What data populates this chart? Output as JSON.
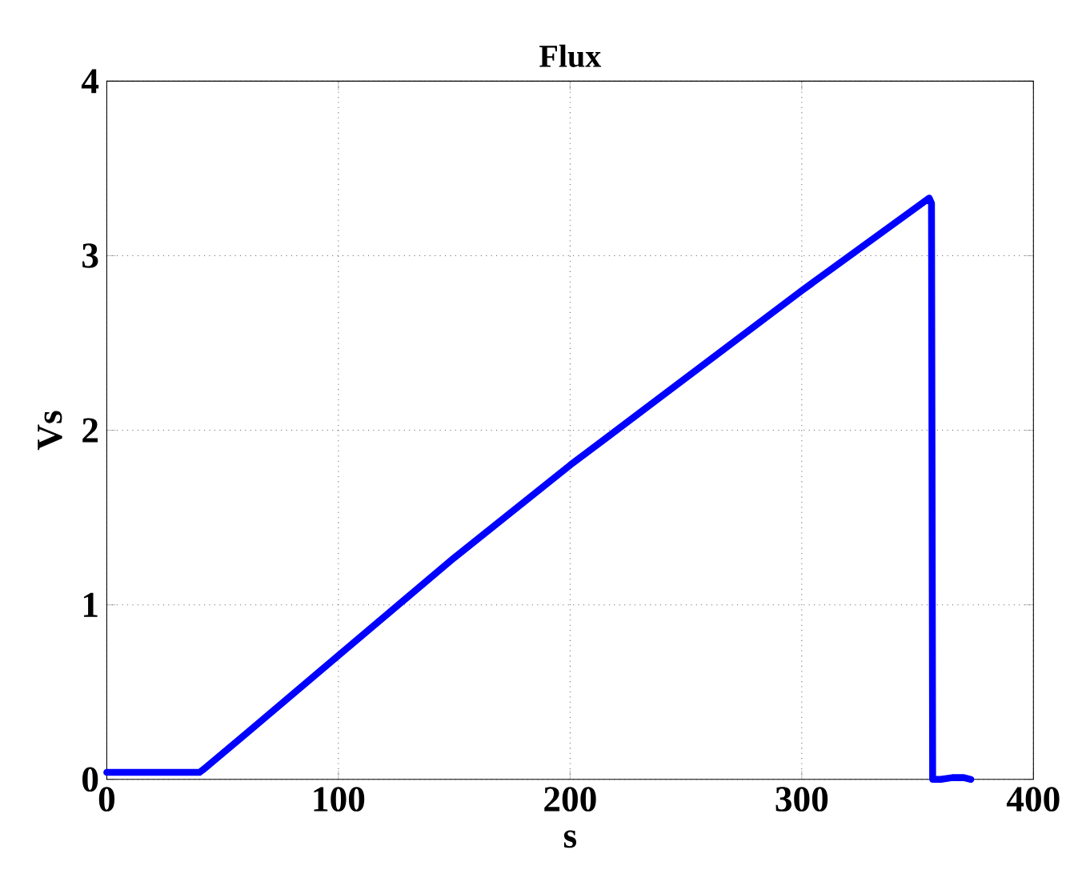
{
  "chart_data": {
    "type": "line",
    "title": "Flux",
    "xlabel": "s",
    "ylabel": "Vs",
    "x": [
      0,
      40,
      42,
      60,
      100,
      150,
      200,
      250,
      300,
      355,
      356,
      356.5,
      360,
      365,
      370,
      373
    ],
    "series": [
      {
        "color": "#0000ff",
        "values": [
          0.04,
          0.04,
          0.06,
          0.26,
          0.71,
          1.27,
          1.8,
          2.3,
          2.8,
          3.33,
          3.3,
          0,
          0,
          0.01,
          0.01,
          0
        ]
      }
    ],
    "xlim": [
      0,
      400
    ],
    "ylim": [
      0,
      4
    ],
    "xticks": [
      0,
      100,
      200,
      300,
      400
    ],
    "yticks": [
      0,
      1,
      2,
      3,
      4
    ],
    "grid": true,
    "line_style": "solid",
    "marker": "none"
  }
}
